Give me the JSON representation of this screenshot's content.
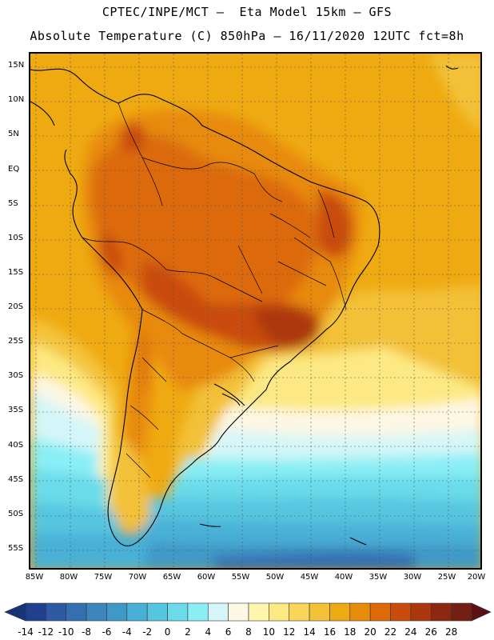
{
  "title": {
    "line1": "CPTEC/INPE/MCT –  Eta Model 15km – GFS",
    "line2": "Absolute Temperature (C) 850hPa – 16/11/2020 12UTC fct=8h"
  },
  "axes": {
    "lat_labels": [
      "15N",
      "10N",
      "5N",
      "EQ",
      "5S",
      "10S",
      "15S",
      "20S",
      "25S",
      "30S",
      "35S",
      "40S",
      "45S",
      "50S",
      "55S"
    ],
    "lon_labels": [
      "85W",
      "80W",
      "75W",
      "70W",
      "65W",
      "60W",
      "55W",
      "50W",
      "45W",
      "40W",
      "35W",
      "30W",
      "25W",
      "20W"
    ]
  },
  "legend": {
    "values": [
      "-14",
      "-12",
      "-10",
      "-8",
      "-6",
      "-4",
      "-2",
      "0",
      "2",
      "4",
      "6",
      "8",
      "10",
      "12",
      "14",
      "16",
      "18",
      "20",
      "22",
      "24",
      "26",
      "28"
    ],
    "colors": [
      "#1f3f8f",
      "#2d5aa3",
      "#3470b1",
      "#3c86bd",
      "#3f99c6",
      "#48b0d6",
      "#56c6e0",
      "#6bdbea",
      "#8aeef5",
      "#d4f6f8",
      "#fdf7e4",
      "#fff6ad",
      "#fde983",
      "#f9d659",
      "#f3c138",
      "#eeaa12",
      "#e88a0a",
      "#dc6a08",
      "#c94c0d",
      "#ad370d",
      "#8c2810",
      "#731f14"
    ],
    "under_color": "#17337a",
    "over_color": "#5c1013"
  }
}
